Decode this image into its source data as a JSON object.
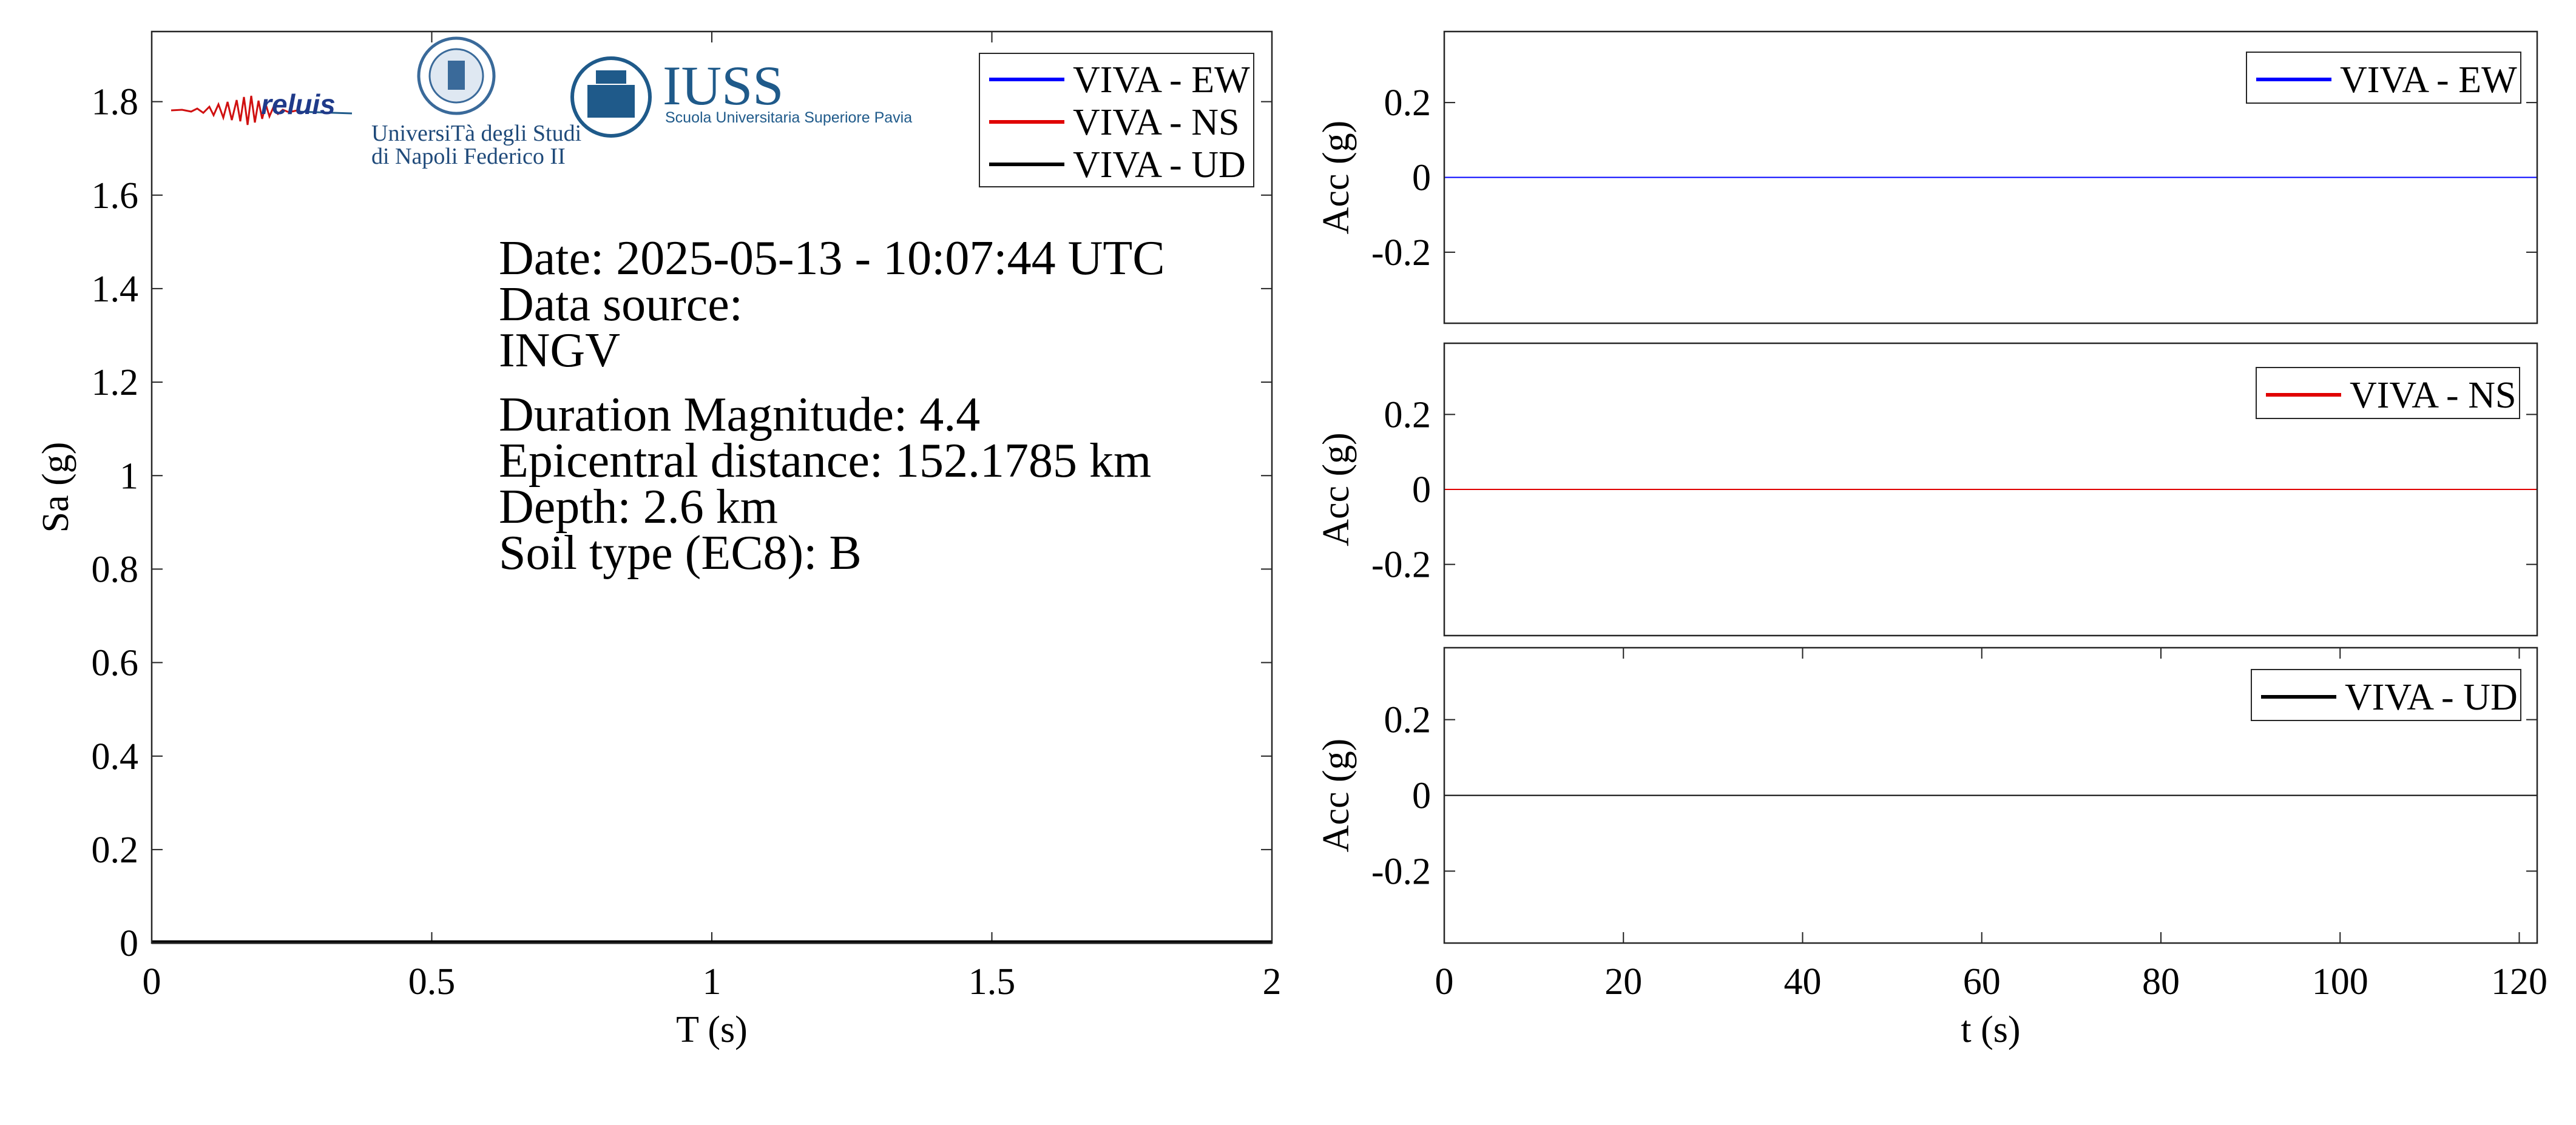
{
  "colors": {
    "ew": "#0000ff",
    "ns": "#e00000",
    "ud": "#000000",
    "logo_blue": "#1f5a8a",
    "logo_red": "#d01010"
  },
  "logos": {
    "reluis": "reluis",
    "unina_line1": "UniversiTà degli Studi",
    "unina_line2": "di Napoli Federico II",
    "iuss_title": "IUSS",
    "iuss_subtitle": "Scuola Universitaria Superiore Pavia"
  },
  "info": {
    "date": "Date: 2025-05-13 - 10:07:44 UTC",
    "source_label": "Data source:",
    "source": "INGV",
    "magnitude": "Duration Magnitude: 4.4",
    "distance": "Epicentral distance: 152.1785 km",
    "depth": "Depth: 2.6 km",
    "soil": "Soil type (EC8): B"
  },
  "chart_data": [
    {
      "type": "line",
      "xlabel": "T (s)",
      "ylabel": "Sa (g)",
      "xlim": [
        0,
        2
      ],
      "ylim": [
        0,
        1.95
      ],
      "xticks": [
        0,
        0.5,
        1,
        1.5,
        2
      ],
      "xtick_labels": [
        "0",
        "0.5",
        "1",
        "1.5",
        "2"
      ],
      "yticks": [
        0,
        0.2,
        0.4,
        0.6,
        0.8,
        1,
        1.2,
        1.4,
        1.6,
        1.8
      ],
      "ytick_labels": [
        "0",
        "0.2",
        "0.4",
        "0.6",
        "0.8",
        "1",
        "1.2",
        "1.4",
        "1.6",
        "1.8"
      ],
      "legend": "top-right",
      "grid": false,
      "series": [
        {
          "name": "VIVA - EW",
          "color": "#0000ff",
          "x": [
            0,
            0.5,
            1,
            1.5,
            2
          ],
          "y": [
            0.002,
            0.002,
            0.002,
            0.002,
            0.002
          ]
        },
        {
          "name": "VIVA - NS",
          "color": "#e00000",
          "x": [
            0,
            0.5,
            1,
            1.5,
            2
          ],
          "y": [
            0.002,
            0.002,
            0.002,
            0.002,
            0.002
          ]
        },
        {
          "name": "VIVA - UD",
          "color": "#000000",
          "x": [
            0,
            0.5,
            1,
            1.5,
            2
          ],
          "y": [
            0.002,
            0.002,
            0.002,
            0.002,
            0.002
          ]
        }
      ]
    },
    {
      "type": "line",
      "ylabel": "Acc (g)",
      "xlim": [
        0,
        122
      ],
      "ylim": [
        -0.39,
        0.39
      ],
      "yticks": [
        -0.2,
        0,
        0.2
      ],
      "ytick_labels": [
        "-0.2",
        "0",
        "0.2"
      ],
      "legend": "top-right",
      "series": [
        {
          "name": "VIVA - EW",
          "color": "#0000ff",
          "x": [
            0,
            122
          ],
          "y": [
            0,
            0
          ]
        }
      ]
    },
    {
      "type": "line",
      "ylabel": "Acc (g)",
      "xlim": [
        0,
        122
      ],
      "ylim": [
        -0.39,
        0.39
      ],
      "yticks": [
        -0.2,
        0,
        0.2
      ],
      "ytick_labels": [
        "-0.2",
        "0",
        "0.2"
      ],
      "legend": "top-right",
      "series": [
        {
          "name": "VIVA - NS",
          "color": "#e00000",
          "x": [
            0,
            122
          ],
          "y": [
            0,
            0
          ]
        }
      ]
    },
    {
      "type": "line",
      "xlabel": "t (s)",
      "ylabel": "Acc (g)",
      "xlim": [
        0,
        122
      ],
      "ylim": [
        -0.39,
        0.39
      ],
      "xticks": [
        0,
        20,
        40,
        60,
        80,
        100,
        120
      ],
      "xtick_labels": [
        "0",
        "20",
        "40",
        "60",
        "80",
        "100",
        "120"
      ],
      "yticks": [
        -0.2,
        0,
        0.2
      ],
      "ytick_labels": [
        "-0.2",
        "0",
        "0.2"
      ],
      "legend": "top-right",
      "series": [
        {
          "name": "VIVA - UD",
          "color": "#000000",
          "x": [
            0,
            122
          ],
          "y": [
            0,
            0
          ]
        }
      ]
    }
  ]
}
